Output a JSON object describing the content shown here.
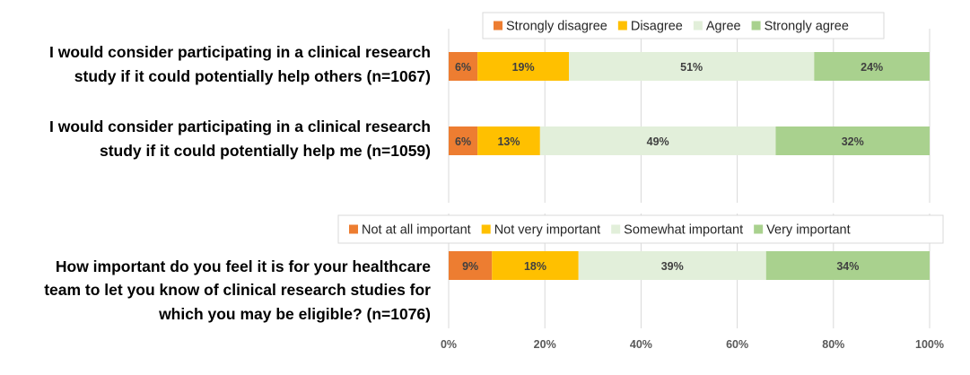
{
  "chart_data": [
    {
      "type": "bar",
      "orientation": "horizontal",
      "stacked": true,
      "legend": [
        "Strongly disagree",
        "Disagree",
        "Agree",
        "Strongly agree"
      ],
      "legend_position": "top",
      "categories": [
        [
          "I would consider participating in a clinical research",
          "study if it could potentially help others (n=1067)"
        ],
        [
          "I would consider participating in a clinical research",
          "study if it could potentially help me (n=1059)"
        ]
      ],
      "series": [
        {
          "name": "Strongly disagree",
          "values": [
            6,
            6
          ],
          "color": "#ED7D31"
        },
        {
          "name": "Disagree",
          "values": [
            19,
            13
          ],
          "color": "#FFC000"
        },
        {
          "name": "Agree",
          "values": [
            51,
            49
          ],
          "color": "#E2EFDA"
        },
        {
          "name": "Strongly agree",
          "values": [
            24,
            32
          ],
          "color": "#A9D18E"
        }
      ],
      "xlim": [
        0,
        100
      ],
      "grid": true
    },
    {
      "type": "bar",
      "orientation": "horizontal",
      "stacked": true,
      "legend": [
        "Not at all important",
        "Not very important",
        "Somewhat important",
        "Very important"
      ],
      "legend_position": "top",
      "categories": [
        [
          "How important do you feel it is for your healthcare",
          "team to let you know of clinical research studies for",
          "which you may be eligible? (n=1076)"
        ]
      ],
      "series": [
        {
          "name": "Not at all important",
          "values": [
            9
          ],
          "color": "#ED7D31"
        },
        {
          "name": "Not very important",
          "values": [
            18
          ],
          "color": "#FFC000"
        },
        {
          "name": "Somewhat important",
          "values": [
            39
          ],
          "color": "#E2EFDA"
        },
        {
          "name": "Very important",
          "values": [
            34
          ],
          "color": "#A9D18E"
        }
      ],
      "xlim": [
        0,
        100
      ],
      "xticks": [
        "0%",
        "20%",
        "40%",
        "60%",
        "80%",
        "100%"
      ],
      "grid": true
    }
  ]
}
